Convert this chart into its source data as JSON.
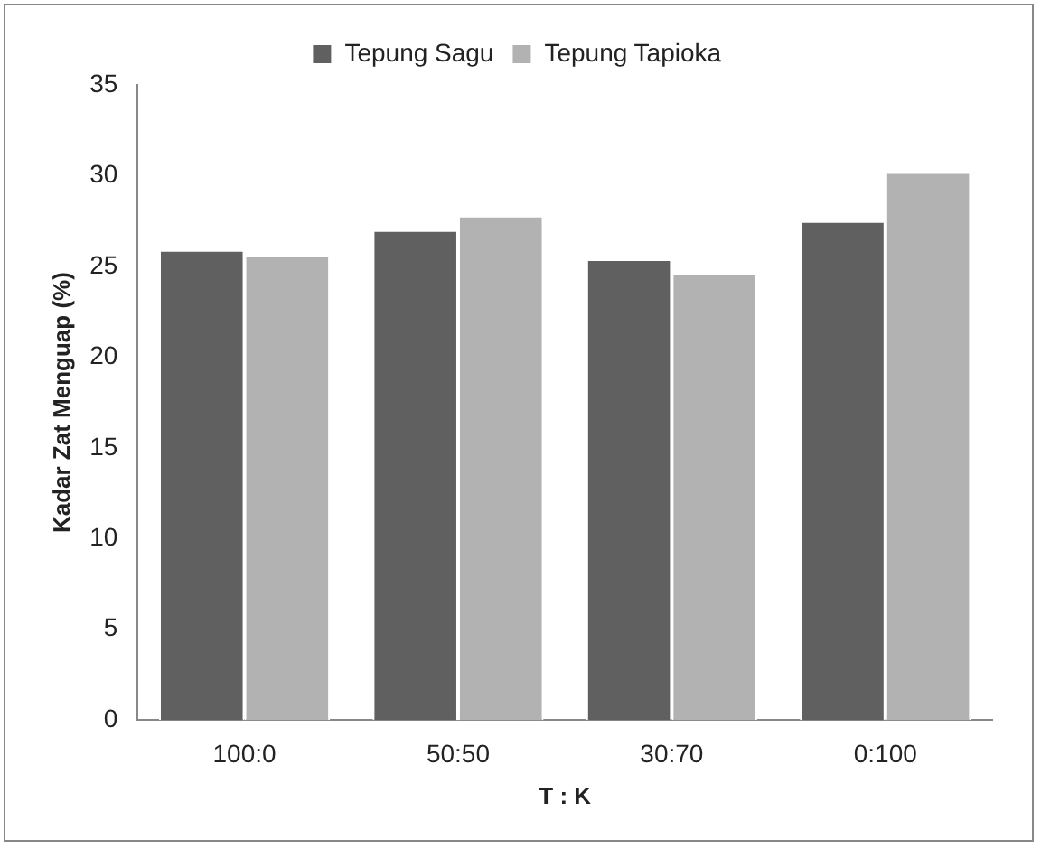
{
  "chart_data": {
    "type": "bar",
    "xlabel": "T : K",
    "ylabel": "Kadar Zat Menguap (%)",
    "categories": [
      "100:0",
      "50:50",
      "30:70",
      "0:100"
    ],
    "series": [
      {
        "name": "Tepung Sagu",
        "color": "#606060",
        "values": [
          25.9,
          27.0,
          25.4,
          27.5
        ]
      },
      {
        "name": "Tepung Tapioka",
        "color": "#b2b2b2",
        "values": [
          25.6,
          27.8,
          24.6,
          30.2
        ]
      }
    ],
    "ylim": [
      0,
      35
    ],
    "yticks": [
      0,
      5,
      10,
      15,
      20,
      25,
      30,
      35
    ],
    "grid": false,
    "legend": "top"
  }
}
